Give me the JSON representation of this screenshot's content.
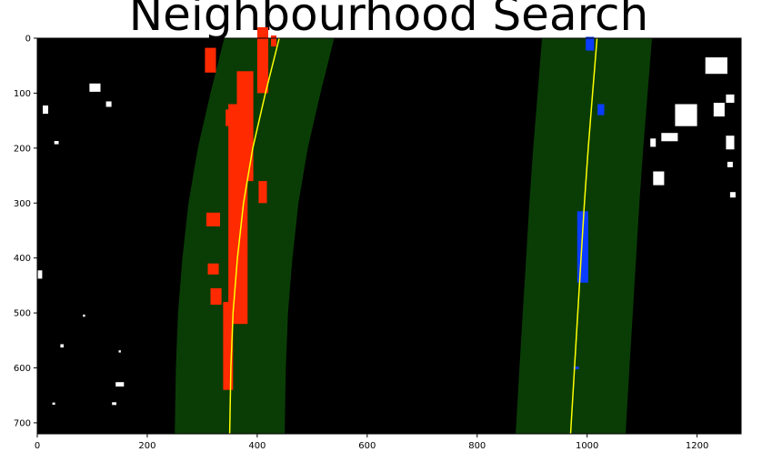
{
  "chart_data": {
    "type": "image-plot",
    "title": "Neighbourhood Search",
    "xlabel": "",
    "ylabel": "",
    "xlim": [
      0,
      1280
    ],
    "ylim": [
      720,
      0
    ],
    "grid": false,
    "xticks": [
      0,
      200,
      400,
      600,
      800,
      1000,
      1200
    ],
    "yticks": [
      0,
      100,
      200,
      300,
      400,
      500,
      600,
      700
    ],
    "colors": {
      "background": "#000000",
      "search_margin": "#0a3d06",
      "left_pixels": "#ff2a00",
      "right_pixels": "#0a3cff",
      "fit_line": "#ffff00",
      "other_pixels": "#ffffff"
    },
    "series": [
      {
        "role": "left-lane-fit",
        "y": [
          0,
          100,
          200,
          300,
          400,
          500,
          600,
          720
        ],
        "x": [
          440,
          415,
          392,
          375,
          364,
          356,
          352,
          350
        ]
      },
      {
        "role": "right-lane-fit",
        "y": [
          0,
          100,
          200,
          300,
          400,
          500,
          600,
          720
        ],
        "x": [
          1018,
          1010,
          1002,
          995,
          989,
          983,
          977,
          970
        ]
      }
    ],
    "search_margin": 100,
    "pixel_clusters": {
      "left": [
        {
          "x": 365,
          "y": 320,
          "w": 35,
          "h": 400
        },
        {
          "x": 378,
          "y": 160,
          "w": 30,
          "h": 200
        },
        {
          "x": 410,
          "y": 40,
          "w": 20,
          "h": 120
        },
        {
          "x": 347,
          "y": 560,
          "w": 18,
          "h": 160
        },
        {
          "x": 350,
          "y": 145,
          "w": 15,
          "h": 30
        },
        {
          "x": 315,
          "y": 40,
          "w": 20,
          "h": 45
        },
        {
          "x": 430,
          "y": 5,
          "w": 10,
          "h": 20
        },
        {
          "x": 320,
          "y": 330,
          "w": 25,
          "h": 25
        },
        {
          "x": 320,
          "y": 420,
          "w": 20,
          "h": 20
        },
        {
          "x": 325,
          "y": 470,
          "w": 20,
          "h": 30
        },
        {
          "x": 410,
          "y": 280,
          "w": 15,
          "h": 40
        }
      ],
      "right": [
        {
          "x": 992,
          "y": 380,
          "w": 20,
          "h": 130
        },
        {
          "x": 1005,
          "y": 10,
          "w": 15,
          "h": 25
        },
        {
          "x": 1025,
          "y": 130,
          "w": 12,
          "h": 20
        },
        {
          "x": 980,
          "y": 600,
          "w": 10,
          "h": 5
        }
      ],
      "other": [
        {
          "x": 105,
          "y": 90,
          "w": 20,
          "h": 15
        },
        {
          "x": 130,
          "y": 120,
          "w": 10,
          "h": 10
        },
        {
          "x": 15,
          "y": 130,
          "w": 10,
          "h": 15
        },
        {
          "x": 35,
          "y": 190,
          "w": 8,
          "h": 6
        },
        {
          "x": 5,
          "y": 430,
          "w": 8,
          "h": 15
        },
        {
          "x": 85,
          "y": 505,
          "w": 4,
          "h": 4
        },
        {
          "x": 45,
          "y": 560,
          "w": 6,
          "h": 6
        },
        {
          "x": 150,
          "y": 570,
          "w": 4,
          "h": 4
        },
        {
          "x": 150,
          "y": 630,
          "w": 15,
          "h": 8
        },
        {
          "x": 140,
          "y": 665,
          "w": 8,
          "h": 5
        },
        {
          "x": 30,
          "y": 665,
          "w": 5,
          "h": 4
        },
        {
          "x": 1235,
          "y": 50,
          "w": 40,
          "h": 30
        },
        {
          "x": 1180,
          "y": 140,
          "w": 40,
          "h": 40
        },
        {
          "x": 1240,
          "y": 130,
          "w": 20,
          "h": 25
        },
        {
          "x": 1150,
          "y": 180,
          "w": 30,
          "h": 15
        },
        {
          "x": 1130,
          "y": 255,
          "w": 20,
          "h": 25
        },
        {
          "x": 1120,
          "y": 190,
          "w": 10,
          "h": 15
        },
        {
          "x": 1260,
          "y": 190,
          "w": 15,
          "h": 25
        },
        {
          "x": 1260,
          "y": 230,
          "w": 10,
          "h": 10
        },
        {
          "x": 1265,
          "y": 285,
          "w": 10,
          "h": 10
        },
        {
          "x": 1260,
          "y": 110,
          "w": 15,
          "h": 15
        }
      ]
    }
  }
}
